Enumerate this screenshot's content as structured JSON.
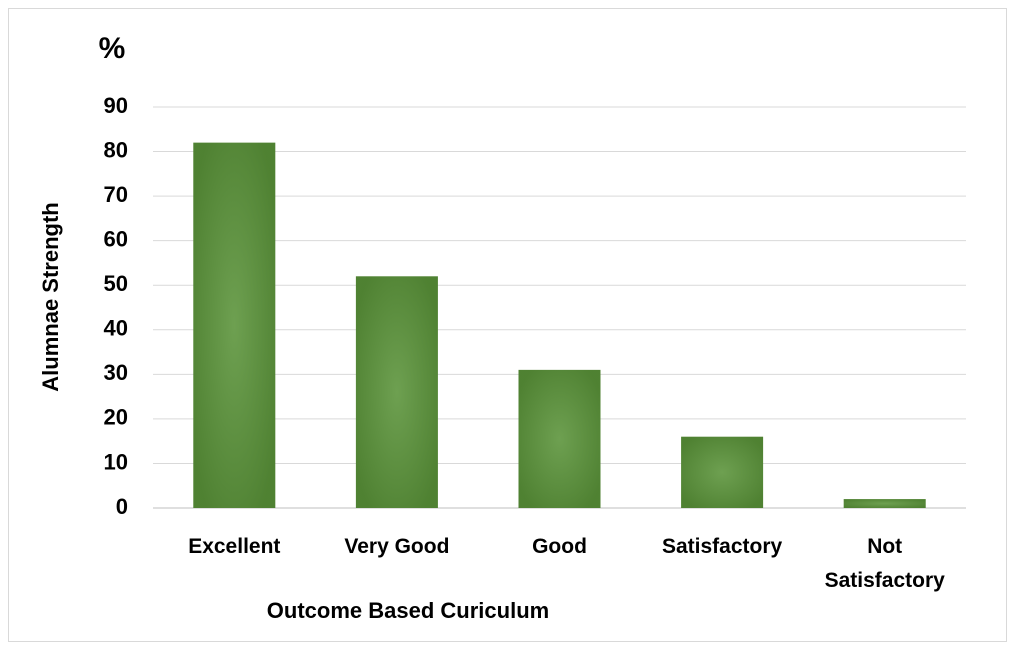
{
  "chart_data": {
    "type": "bar",
    "unit_label": "%",
    "y_label": "Alumnae Strength",
    "x_label": "Outcome Based Curiculum",
    "categories": [
      "Excellent",
      "Very Good",
      "Good",
      "Satisfactory",
      "Not Satisfactory"
    ],
    "values": [
      82,
      52,
      31,
      16,
      2
    ],
    "color": "#5a9339",
    "ylim": [
      0,
      90
    ],
    "yticks": [
      0,
      10,
      20,
      30,
      40,
      50,
      60,
      70,
      80,
      90
    ],
    "grid": true
  }
}
